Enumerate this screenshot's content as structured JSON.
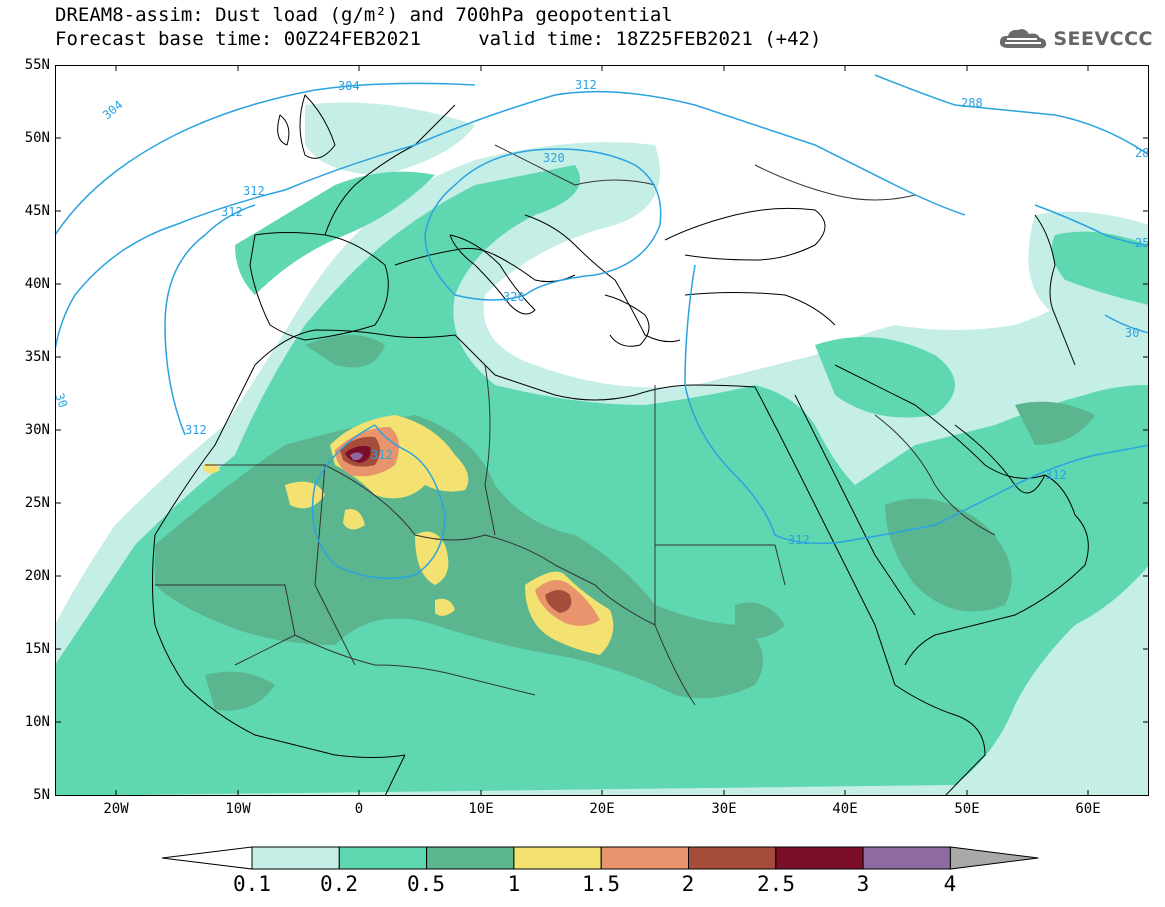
{
  "header": {
    "title_line1": "DREAM8-assim: Dust load (g/m²) and 700hPa geopotential",
    "title_line2": "Forecast base time: 00Z24FEB2021     valid time: 18Z25FEB2021 (+42)",
    "logo_text": "SEEVCCC"
  },
  "axes": {
    "lat_labels": [
      "55N",
      "50N",
      "45N",
      "40N",
      "35N",
      "30N",
      "25N",
      "20N",
      "15N",
      "10N",
      "5N"
    ],
    "lon_labels": [
      "20W",
      "10W",
      "0",
      "10E",
      "20E",
      "30E",
      "40E",
      "50E",
      "60E"
    ]
  },
  "contours": {
    "labels": [
      "304",
      "304",
      "312",
      "312",
      "312",
      "312",
      "312",
      "312",
      "320",
      "320",
      "288",
      "28",
      "25",
      "30",
      "30",
      "312"
    ]
  },
  "colorbar": {
    "ticks": [
      "0.1",
      "0.2",
      "0.5",
      "1",
      "1.5",
      "2",
      "2.5",
      "3",
      "4"
    ],
    "colors": [
      "#c5eee6",
      "#5fd8b1",
      "#5bb68f",
      "#f3e271",
      "#e8946d",
      "#a64c3b",
      "#7b0f2a",
      "#8e6aa1"
    ],
    "under_color": "#ffffff",
    "over_color": "#a9a9a9"
  }
}
